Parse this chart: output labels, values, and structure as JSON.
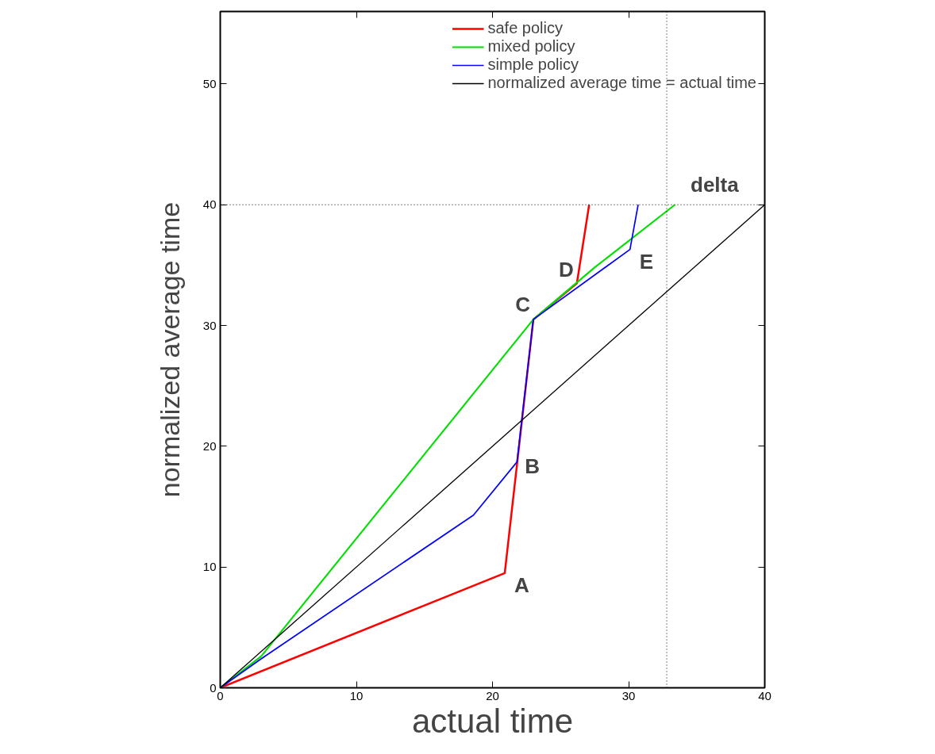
{
  "chart_data": {
    "type": "line",
    "xlabel": "actual time",
    "ylabel": "normalized average time",
    "xlim": [
      0,
      40
    ],
    "ylim": [
      0,
      56
    ],
    "xticks": [
      0,
      10,
      20,
      30,
      40
    ],
    "yticks": [
      0,
      10,
      20,
      30,
      40,
      50
    ],
    "grid": false,
    "legend": "top right",
    "marker": "none",
    "line_style": "solid",
    "series": [
      {
        "name": "safe policy",
        "color": "#ff0000",
        "x": [
          0,
          20.9,
          23.0,
          26.2,
          27.1
        ],
        "values": [
          0,
          9.5,
          30.5,
          33.5,
          40
        ]
      },
      {
        "name": "mixed policy",
        "color": "#00e000",
        "x": [
          0,
          3.0,
          23.0,
          27.5,
          33.4
        ],
        "values": [
          0,
          2.6,
          30.5,
          34.8,
          40
        ]
      },
      {
        "name": "simple policy",
        "color": "#0000ff",
        "x": [
          0,
          3.0,
          18.6,
          21.8,
          23.0,
          30.1,
          30.7
        ],
        "values": [
          0,
          2.4,
          14.3,
          18.7,
          30.5,
          36.3,
          40
        ]
      },
      {
        "name": "normalized average time = actual time",
        "color": "#000000",
        "x": [
          0,
          40
        ],
        "values": [
          0,
          40
        ]
      }
    ],
    "ref_lines": [
      {
        "axis": "y",
        "value": 40,
        "color": "#000000",
        "line_style": "dotted"
      },
      {
        "axis": "x",
        "value": 32.8,
        "color": "#000000",
        "line_style": "dotted"
      }
    ],
    "annotations": [
      {
        "text": "A",
        "x": 20.9,
        "y": 9.5
      },
      {
        "text": "B",
        "x": 21.8,
        "y": 18.7
      },
      {
        "text": "C",
        "x": 23.0,
        "y": 30.5
      },
      {
        "text": "D",
        "x": 26.2,
        "y": 33.5
      },
      {
        "text": "E",
        "x": 30.1,
        "y": 36.3
      },
      {
        "text": "delta",
        "x": 32.8,
        "y": 40
      }
    ]
  }
}
